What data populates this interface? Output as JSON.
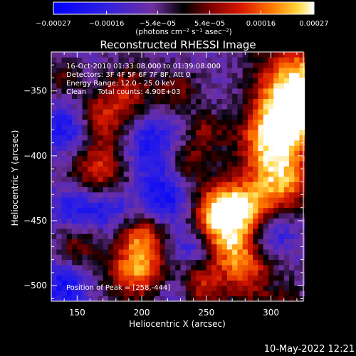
{
  "chart_data": {
    "type": "heatmap",
    "title": "Reconstructed RHESSI Image",
    "xlabel": "Heliocentric X (arcsec)",
    "ylabel": "Heliocentric Y (arcsec)",
    "xlim": [
      130,
      325
    ],
    "ylim": [
      -512,
      -320
    ],
    "x_ticks": [
      150,
      200,
      250,
      300
    ],
    "y_ticks": [
      -500,
      -450,
      -400,
      -350
    ],
    "colorbar": {
      "ticks": [
        {
          "label": "−0.00027",
          "value": -0.00027
        },
        {
          "label": "−0.00016",
          "value": -0.00016
        },
        {
          "label": "−5.4e−05",
          "value": -5.4e-05
        },
        {
          "label": "5.4e−05",
          "value": 5.4e-05
        },
        {
          "label": "0.00016",
          "value": 0.00016
        },
        {
          "label": "0.00027",
          "value": 0.00027
        }
      ],
      "unit_label": "(photons cm⁻² s⁻¹ asec⁻²)",
      "range": [
        -0.00027,
        0.00027
      ]
    },
    "annotations": [
      "16-Oct-2010 01:33:08.000 to 01:39:08.000",
      "Detectors: 3F 4F 5F 6F 7F 8F, Att 0",
      "Energy Range: 12.0 - 25.0 keV",
      "Clean     Total counts: 4.90E+03"
    ],
    "peak_label": "Position of Peak = [258,-444]",
    "peak": {
      "x": 258,
      "y": -444
    }
  },
  "footer_date": "10-May-2022 12:21"
}
